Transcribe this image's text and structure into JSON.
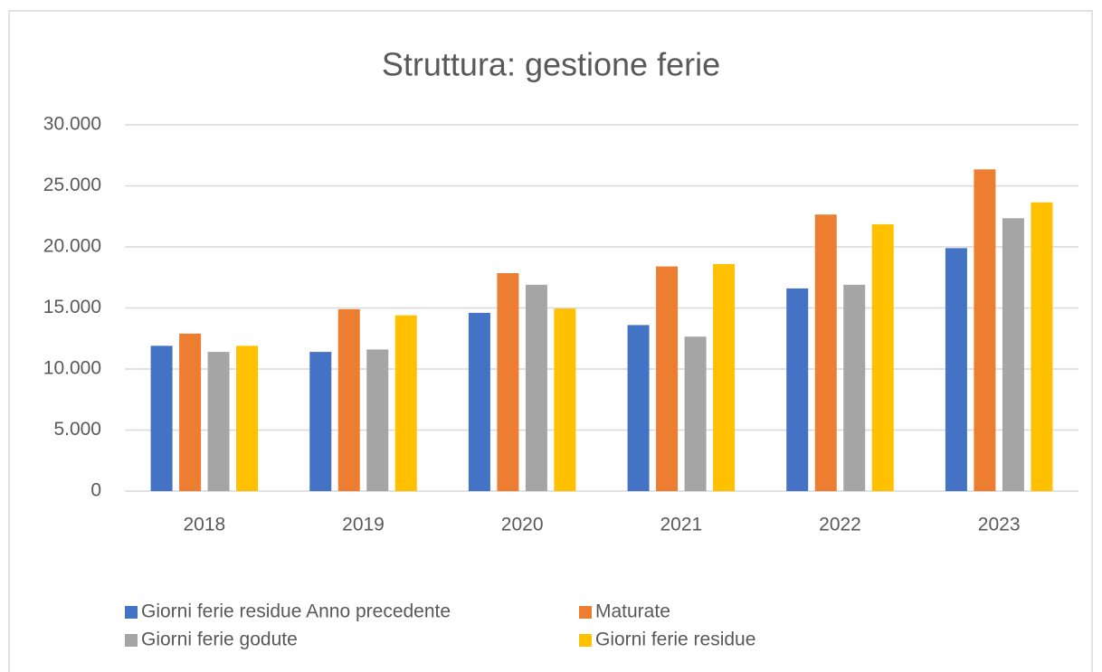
{
  "chart_data": {
    "type": "bar",
    "title": "Struttura: gestione ferie",
    "categories": [
      "2018",
      "2019",
      "2020",
      "2021",
      "2022",
      "2023"
    ],
    "series": [
      {
        "name": "Giorni ferie residue Anno precedente",
        "color": "#4472c4",
        "values": [
          11900,
          11400,
          14600,
          13600,
          16600,
          19900
        ]
      },
      {
        "name": "Maturate",
        "color": "#ed7d31",
        "values": [
          12900,
          14900,
          17850,
          18400,
          22650,
          26350
        ]
      },
      {
        "name": "Giorni ferie godute",
        "color": "#a5a5a5",
        "values": [
          11400,
          11600,
          16900,
          12650,
          16900,
          22350
        ]
      },
      {
        "name": "Giorni ferie residue",
        "color": "#ffc000",
        "values": [
          11900,
          14400,
          14950,
          18600,
          21850,
          23650
        ]
      }
    ],
    "ylim": [
      0,
      30000
    ],
    "yticks": [
      0,
      {
        "value": 5000,
        "label": "5.000"
      },
      {
        "value": 10000,
        "label": "10.000"
      },
      {
        "value": 15000,
        "label": "15.000"
      },
      {
        "value": 20000,
        "label": "20.000"
      },
      {
        "value": 25000,
        "label": "25.000"
      },
      {
        "value": 30000,
        "label": "30.000"
      }
    ],
    "grid": true,
    "legend": "bottom"
  }
}
